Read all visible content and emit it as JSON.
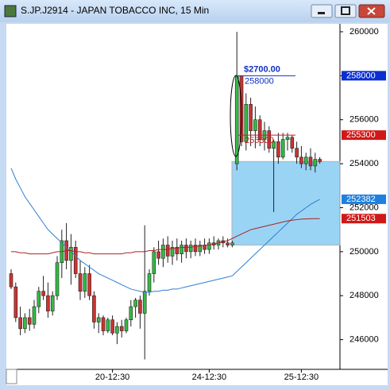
{
  "chart_data": {
    "type": "candlestick",
    "title": "S.JP.J2914 - JAPAN TOBACCO INC, 15 Min",
    "categories": [
      null,
      null,
      null,
      null,
      null,
      null,
      null,
      null,
      null,
      null,
      null,
      null,
      null,
      null,
      null,
      null,
      null,
      null,
      null,
      null,
      null,
      null,
      "20-12:30",
      null,
      null,
      null,
      null,
      null,
      null,
      null,
      null,
      null,
      null,
      null,
      null,
      null,
      null,
      null,
      null,
      null,
      null,
      null,
      null,
      "24-12:30",
      null,
      null,
      null,
      null,
      null,
      null,
      null,
      null,
      null,
      null,
      null,
      null,
      null,
      null,
      null,
      null,
      null,
      null,
      null,
      "25-12:30",
      null,
      null,
      null,
      null
    ],
    "open": [
      249000,
      248400,
      247000,
      246500,
      247000,
      246700,
      247500,
      248200,
      248000,
      247300,
      248000,
      249500,
      250500,
      249600,
      250200,
      249000,
      248200,
      249000,
      248000,
      246800,
      247000,
      246400,
      246900,
      246300,
      246600,
      246400,
      246900,
      247500,
      247800,
      247200,
      248200,
      249000,
      250000,
      249700,
      250300,
      249800,
      250200,
      249900,
      250300,
      250000,
      250300,
      250000,
      250300,
      250100,
      250400,
      250300,
      250500,
      250400,
      250300,
      254000,
      258000,
      255000,
      256700,
      255500,
      256000,
      255100,
      255500,
      254700,
      255000,
      254300,
      255100,
      255200,
      254700,
      254300,
      254000,
      254300,
      253900,
      254200
    ],
    "high": [
      249200,
      248600,
      247500,
      247200,
      247400,
      247800,
      248400,
      248900,
      248600,
      248200,
      249800,
      251000,
      251300,
      250800,
      250500,
      249600,
      249300,
      249400,
      248200,
      247200,
      247100,
      247000,
      247100,
      246800,
      246900,
      247000,
      247800,
      247900,
      248000,
      251200,
      249200,
      250200,
      250500,
      250600,
      250700,
      250500,
      250600,
      250500,
      250600,
      250500,
      250600,
      250500,
      250600,
      250600,
      250700,
      250600,
      250700,
      250600,
      250500,
      260000,
      258000,
      257200,
      257000,
      256600,
      256200,
      255900,
      255700,
      255100,
      255400,
      255400,
      255400,
      255300,
      255000,
      254800,
      254500,
      254700,
      254500,
      254300
    ],
    "low": [
      248300,
      246800,
      246200,
      246300,
      246400,
      246500,
      247200,
      247800,
      247000,
      247100,
      247800,
      248800,
      249200,
      248500,
      248800,
      247800,
      247900,
      247800,
      246500,
      246300,
      246200,
      246300,
      246200,
      245800,
      246100,
      246300,
      246600,
      247000,
      246500,
      245100,
      248000,
      248600,
      249400,
      249300,
      249500,
      249400,
      249600,
      249500,
      249700,
      249700,
      249800,
      249800,
      249900,
      249900,
      250100,
      250100,
      250200,
      250200,
      250200,
      253700,
      254800,
      254600,
      254800,
      254700,
      254800,
      254600,
      254500,
      251800,
      254000,
      254200,
      254600,
      254500,
      254000,
      253800,
      253700,
      253700,
      253600,
      254000
    ],
    "close": [
      248400,
      247000,
      246500,
      247000,
      246700,
      247500,
      248200,
      248000,
      247300,
      248000,
      249500,
      250500,
      249600,
      250200,
      249000,
      248200,
      249000,
      248000,
      246800,
      247000,
      246400,
      246900,
      246300,
      246600,
      246400,
      246900,
      247500,
      247800,
      247200,
      248200,
      249000,
      250000,
      249700,
      250300,
      249800,
      250200,
      249900,
      250300,
      250000,
      250300,
      250000,
      250300,
      250100,
      250400,
      250300,
      250500,
      250400,
      250300,
      250400,
      258000,
      255000,
      256700,
      255500,
      256000,
      255100,
      255500,
      254700,
      255000,
      254300,
      255100,
      255200,
      254700,
      254300,
      254000,
      254300,
      253900,
      254200,
      254100
    ],
    "up_color": "#33bb44",
    "down_color": "#cc3333",
    "series": [
      {
        "color": "#2f7fd0",
        "values": [
          253800,
          253300,
          252900,
          252500,
          252200,
          251900,
          251600,
          251300,
          251000,
          250800,
          250600,
          250400,
          250200,
          250000,
          249800,
          249600,
          249450,
          249300,
          249150,
          249000,
          248900,
          248800,
          248700,
          248600,
          248500,
          248400,
          248300,
          248250,
          248200,
          248150,
          248150,
          248200,
          248200,
          248250,
          248250,
          248300,
          248300,
          248350,
          248400,
          248450,
          248500,
          248550,
          248600,
          248650,
          248700,
          248750,
          248800,
          248850,
          248900,
          249100,
          249300,
          249500,
          249700,
          249900,
          250100,
          250300,
          250500,
          250700,
          250900,
          251100,
          251300,
          251500,
          251700,
          251850,
          252000,
          252150,
          252270,
          252382
        ]
      },
      {
        "color": "#b02020",
        "values": [
          250000,
          250000,
          249950,
          249950,
          249900,
          249900,
          249900,
          249900,
          249900,
          249950,
          250000,
          250000,
          250050,
          250050,
          250000,
          250000,
          249950,
          249950,
          249900,
          249900,
          249900,
          249900,
          249900,
          249900,
          249900,
          249950,
          249950,
          250000,
          250000,
          250000,
          250050,
          250050,
          250100,
          250100,
          250100,
          250150,
          250150,
          250200,
          250200,
          250200,
          250250,
          250250,
          250300,
          250300,
          250350,
          250400,
          250450,
          250500,
          250600,
          250700,
          250800,
          250900,
          251000,
          251050,
          251100,
          251150,
          251200,
          251250,
          251300,
          251350,
          251400,
          251430,
          251460,
          251480,
          251490,
          251500,
          251503,
          251503
        ]
      }
    ],
    "ylim": [
      244650,
      260360
    ],
    "yticks": [
      246000,
      248000,
      250000,
      252000,
      254000,
      256000,
      258000,
      260000
    ],
    "price_badges": [
      {
        "value": 258000,
        "color": "#0a2fd0"
      },
      {
        "value": 255300,
        "color": "#d01818"
      },
      {
        "value": 252382,
        "color": "#1e7fe0"
      },
      {
        "value": 251503,
        "color": "#d01818"
      }
    ],
    "highlight": {
      "ylim": [
        250300,
        254100
      ],
      "color": "#8fd0f5"
    },
    "annotation": {
      "text": "$2700.00",
      "levels": [
        {
          "value": 258000,
          "color": "#1030c0"
        },
        {
          "value": 255300,
          "color": "#c02020"
        }
      ]
    }
  }
}
